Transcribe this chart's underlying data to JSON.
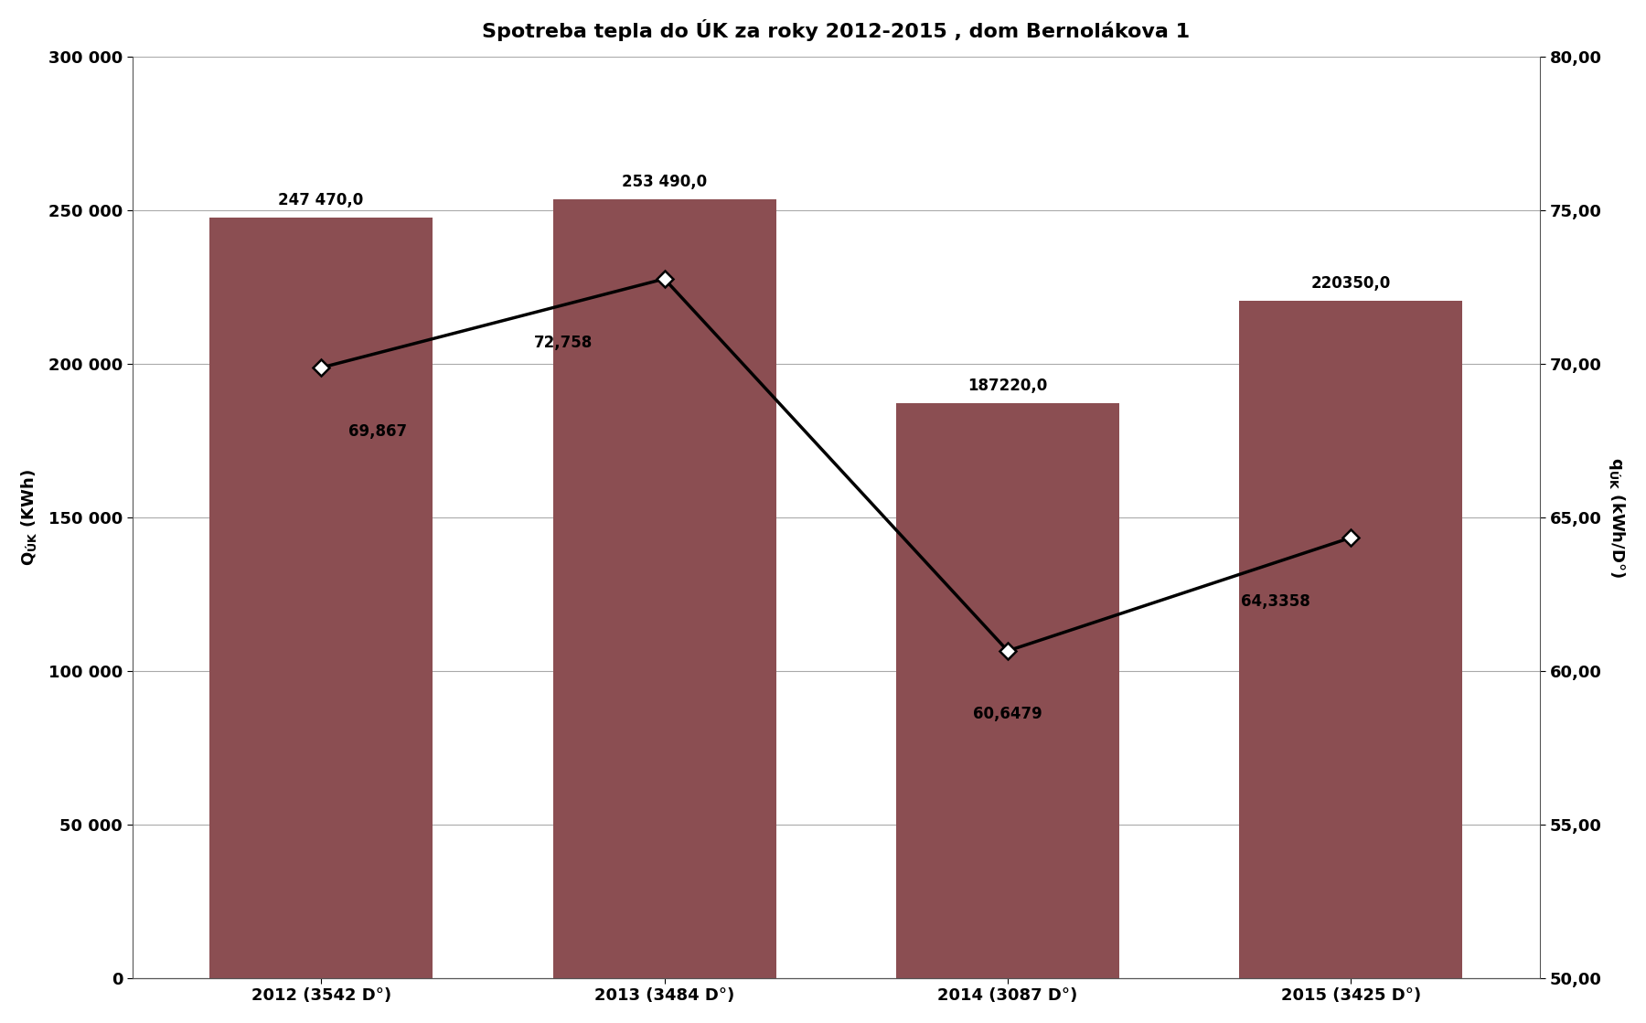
{
  "title": "Spotreba tepla do ÚK za roky 2012-2015 , dom Bernolákova 1",
  "categories": [
    "2012 (3542 D°)",
    "2013 (3484 D°)",
    "2014 (3087 D°)",
    "2015 (3425 D°)"
  ],
  "bar_values": [
    247470.0,
    253490.0,
    187220.0,
    220350.0
  ],
  "bar_labels": [
    "247 470,0",
    "253 490,0",
    "187220,0",
    "220350,0"
  ],
  "line_values": [
    69.867,
    72.758,
    60.6479,
    64.3358
  ],
  "line_labels": [
    "69,867",
    "72,758",
    "60,6479",
    "64,3358"
  ],
  "bar_color": "#8B4E52",
  "line_color": "#000000",
  "ylim_left": [
    0,
    300000
  ],
  "ylim_right": [
    50,
    80
  ],
  "yticks_left": [
    0,
    50000,
    100000,
    150000,
    200000,
    250000,
    300000
  ],
  "yticks_right": [
    50.0,
    55.0,
    60.0,
    65.0,
    70.0,
    75.0,
    80.0
  ],
  "ytick_labels_left": [
    "0",
    "50 000",
    "100 000",
    "150 000",
    "200 000",
    "250 000",
    "300 000"
  ],
  "ytick_labels_right": [
    "50,00",
    "55,00",
    "60,00",
    "65,00",
    "70,00",
    "75,00",
    "80,00"
  ],
  "background_color": "#ffffff",
  "title_fontsize": 16,
  "axis_label_fontsize": 13,
  "tick_fontsize": 13,
  "annotation_fontsize": 12,
  "bar_width": 0.65,
  "xlim": [
    -0.55,
    3.55
  ]
}
